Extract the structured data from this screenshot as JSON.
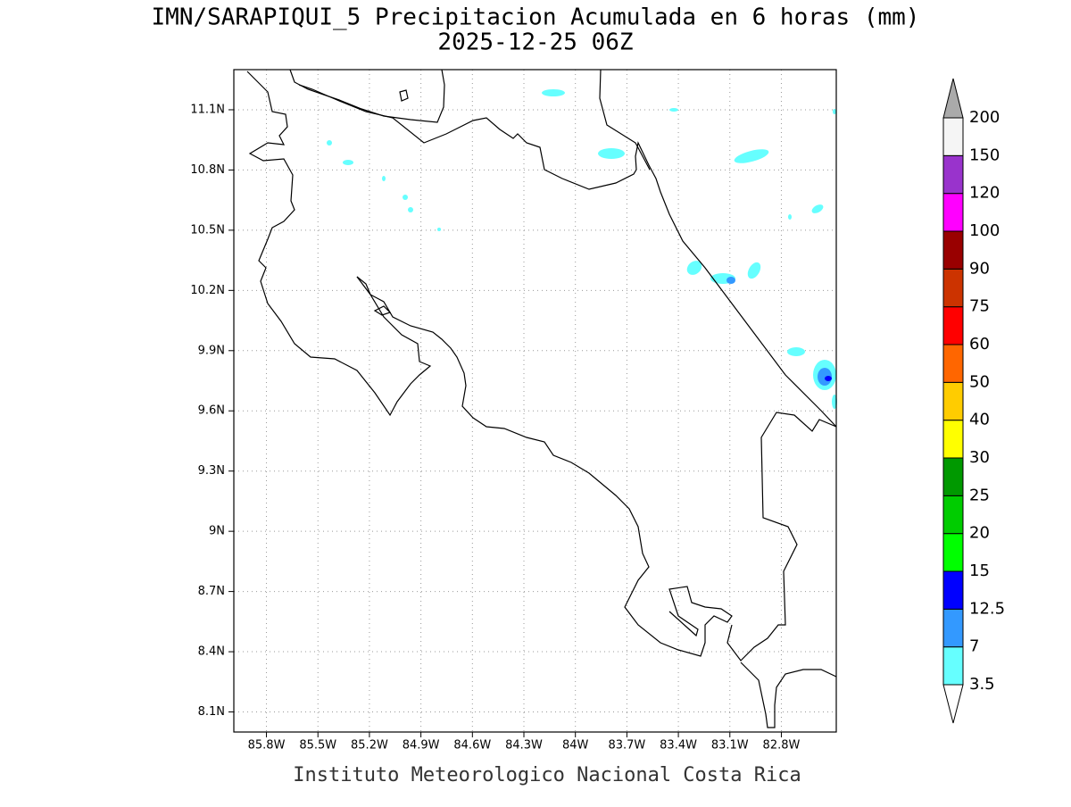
{
  "map": {
    "title": "IMN/SARAPIQUI_5 Precipitacion Acumulada en 6 horas (mm)",
    "subtitle": "2025-12-25 06Z",
    "footer": "Instituto Meteorologico Nacional Costa Rica",
    "xlim": [
      -85.99,
      -82.48
    ],
    "ylim": [
      8.0,
      11.3
    ],
    "xticks": [
      {
        "value": -85.8,
        "label": "85.8W"
      },
      {
        "value": -85.5,
        "label": "85.5W"
      },
      {
        "value": -85.2,
        "label": "85.2W"
      },
      {
        "value": -84.9,
        "label": "84.9W"
      },
      {
        "value": -84.6,
        "label": "84.6W"
      },
      {
        "value": -84.3,
        "label": "84.3W"
      },
      {
        "value": -84.0,
        "label": "84W"
      },
      {
        "value": -83.7,
        "label": "83.7W"
      },
      {
        "value": -83.4,
        "label": "83.4W"
      },
      {
        "value": -83.1,
        "label": "83.1W"
      },
      {
        "value": -82.8,
        "label": "82.8W"
      }
    ],
    "yticks": [
      {
        "value": 8.1,
        "label": "8.1N"
      },
      {
        "value": 8.4,
        "label": "8.4N"
      },
      {
        "value": 8.7,
        "label": "8.7N"
      },
      {
        "value": 9.0,
        "label": "9N"
      },
      {
        "value": 9.3,
        "label": "9.3N"
      },
      {
        "value": 9.6,
        "label": "9.6N"
      },
      {
        "value": 9.9,
        "label": "9.9N"
      },
      {
        "value": 10.2,
        "label": "10.2N"
      },
      {
        "value": 10.5,
        "label": "10.5N"
      },
      {
        "value": 10.8,
        "label": "10.8N"
      },
      {
        "value": 11.1,
        "label": "11.1N"
      }
    ],
    "grid": true,
    "colorbar": {
      "levels": [
        3.5,
        7,
        12.5,
        15,
        20,
        25,
        30,
        40,
        50,
        60,
        75,
        90,
        100,
        120,
        150,
        200
      ],
      "colors": [
        "#ffffff",
        "#66ffff",
        "#3399ff",
        "#0000ff",
        "#00ff00",
        "#00cc00",
        "#009900",
        "#ffff00",
        "#ffcc00",
        "#ff6600",
        "#ff0000",
        "#cc3300",
        "#990000",
        "#ff00ff",
        "#9933cc",
        "#f5f5f5",
        "#aaaaaa"
      ]
    }
  }
}
